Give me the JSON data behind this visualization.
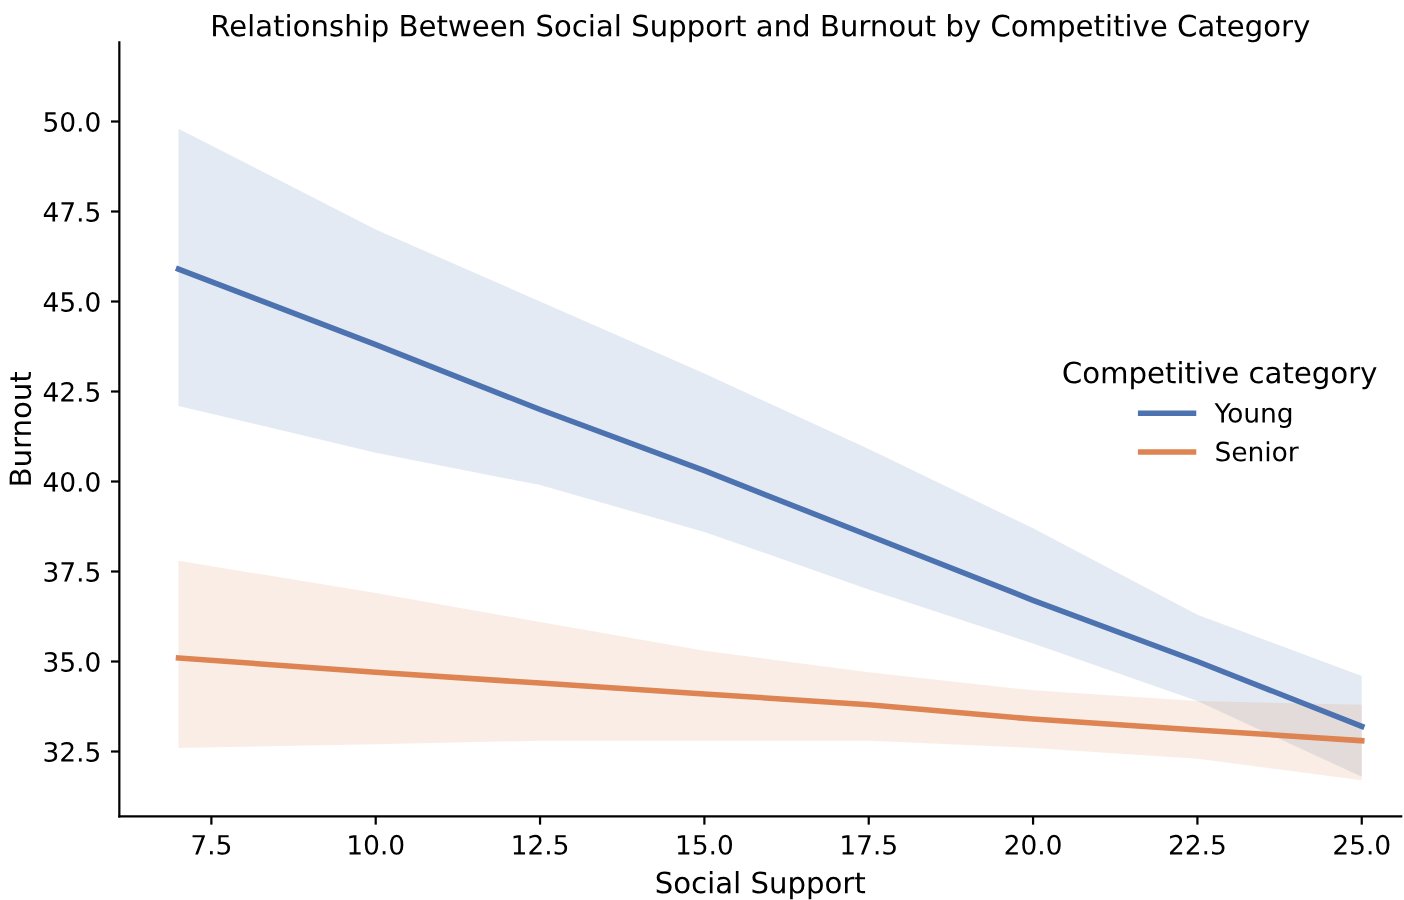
{
  "chart_data": {
    "type": "line",
    "title": "Relationship Between Social Support and Burnout by Competitive Category",
    "xlabel": "Social Support",
    "ylabel": "Burnout",
    "legend_title": "Competitive category",
    "x": [
      7,
      10,
      12.5,
      15,
      17.5,
      20,
      22.5,
      25
    ],
    "series": [
      {
        "name": "Young",
        "color": "#4c72b0",
        "values": [
          45.9,
          43.8,
          42.0,
          40.3,
          38.5,
          36.7,
          35.0,
          33.2
        ],
        "lower": [
          42.1,
          40.8,
          39.9,
          38.6,
          37.0,
          35.5,
          33.9,
          31.8
        ],
        "upper": [
          49.8,
          47.0,
          45.0,
          43.0,
          40.9,
          38.7,
          36.3,
          34.6
        ]
      },
      {
        "name": "Senior",
        "color": "#dd8452",
        "values": [
          35.1,
          34.7,
          34.4,
          34.1,
          33.8,
          33.4,
          33.1,
          32.8
        ],
        "lower": [
          32.6,
          32.7,
          32.8,
          32.8,
          32.8,
          32.6,
          32.3,
          31.7
        ],
        "upper": [
          37.8,
          36.9,
          36.1,
          35.3,
          34.7,
          34.2,
          33.9,
          33.8
        ]
      }
    ],
    "xlim": [
      6.1,
      25.6
    ],
    "ylim": [
      30.7,
      52.2
    ],
    "xticks": [
      7.5,
      {
        "value": 10,
        "label": "10.0"
      },
      12.5,
      {
        "value": 15,
        "label": "15.0"
      },
      17.5,
      {
        "value": 20,
        "label": "20.0"
      },
      22.5,
      {
        "value": 25,
        "label": "25.0"
      }
    ],
    "yticks": [
      32.5,
      {
        "value": 35,
        "label": "35.0"
      },
      37.5,
      {
        "value": 40,
        "label": "40.0"
      },
      42.5,
      {
        "value": 45,
        "label": "45.0"
      },
      47.5,
      {
        "value": 50,
        "label": "50.0"
      }
    ],
    "grid": false,
    "legend": "right",
    "marker": "none",
    "line_style": "solid"
  }
}
